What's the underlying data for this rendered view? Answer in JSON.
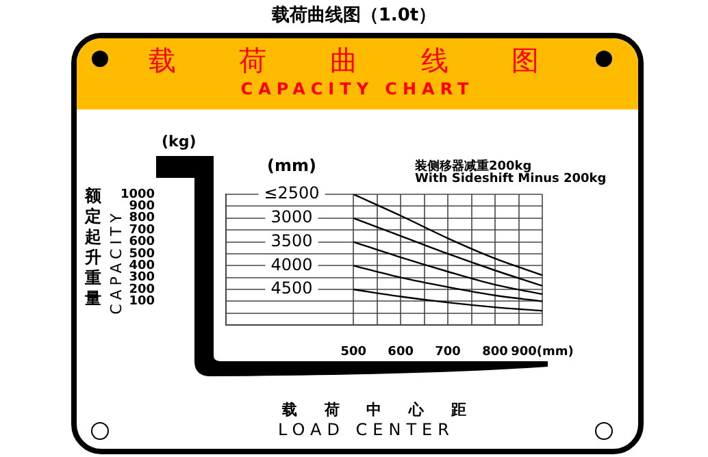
{
  "chart_data": {
    "type": "line",
    "title": "载荷曲线图（1.0t）",
    "xlabel": "载 荷 中 心 距",
    "ylabel": "额定起升重量",
    "legend_title": "(mm)",
    "annotations": [
      "载 荷 曲 线 图",
      "CAPACITY CHART",
      "装侧移器减重200kg",
      "With Sideshift Minus 200kg",
      "LOAD CENTER",
      "CAPACITY",
      "(kg)"
    ],
    "x": [
      500,
      600,
      700,
      800,
      900
    ],
    "series": [
      {
        "name": "≤2500",
        "color": "#000000",
        "values": [
          1000,
          820,
          630,
          460,
          320
        ]
      },
      {
        "name": "3000",
        "color": "#000000",
        "values": [
          800,
          650,
          500,
          360,
          230
        ]
      },
      {
        "name": "3500",
        "color": "#000000",
        "values": [
          600,
          470,
          350,
          240,
          160
        ]
      },
      {
        "name": "4000",
        "color": "#000000",
        "values": [
          400,
          300,
          220,
          150,
          100
        ]
      },
      {
        "name": "4500",
        "color": "#000000",
        "values": [
          200,
          140,
          90,
          50,
          20
        ]
      }
    ],
    "xlim": [
      230,
      900
    ],
    "xticks": [
      500,
      {
        "value": 550,
        "label": null
      },
      600,
      {
        "value": 650,
        "label": null
      },
      700,
      {
        "value": 750,
        "label": null
      },
      800,
      {
        "value": 850,
        "label": null
      },
      {
        "value": 900,
        "label": "900(mm)"
      }
    ],
    "ylim": [
      -100,
      1000
    ],
    "yticks": [
      {
        "value": 0,
        "label": null
      },
      100,
      200,
      300,
      400,
      500,
      600,
      700,
      800,
      900,
      1000
    ],
    "grid": true,
    "marker": "none",
    "line_style": "solid"
  }
}
